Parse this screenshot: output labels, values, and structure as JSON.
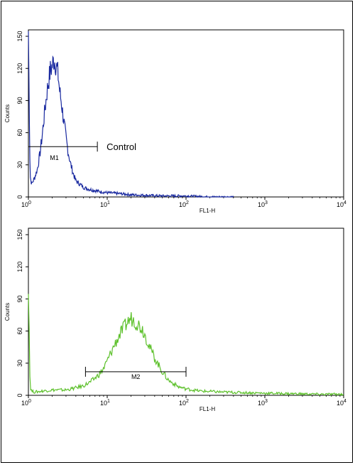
{
  "chart_data": [
    {
      "type": "line",
      "xscale": "log",
      "xlim": [
        1,
        10000
      ],
      "ylim": [
        0,
        156
      ],
      "xlabel": "FL1-H",
      "ylabel": "Counts",
      "yticks": [
        "0",
        "30",
        "60",
        "90",
        "120",
        "150"
      ],
      "xticks": [
        {
          "base": "10",
          "exp": "0"
        },
        {
          "base": "10",
          "exp": "1"
        },
        {
          "base": "10",
          "exp": "2"
        },
        {
          "base": "10",
          "exp": "3"
        },
        {
          "base": "10",
          "exp": "4"
        }
      ],
      "color": "#1a2aa0",
      "series": [
        {
          "x": [
            1.0,
            1.05,
            1.1,
            1.2,
            1.3,
            1.4,
            1.5,
            1.6,
            1.7,
            1.8,
            1.9,
            2.0,
            2.1,
            2.2,
            2.3,
            2.4,
            2.5,
            2.6,
            2.8,
            3.0,
            3.2,
            3.4,
            3.7,
            4.0,
            4.5,
            5.0,
            6.0,
            7.0,
            8.0,
            10.0,
            15.0,
            20.0,
            50.0,
            100.0,
            200.0,
            400.0
          ],
          "values": [
            155,
            20,
            12,
            18,
            26,
            40,
            58,
            78,
            95,
            108,
            118,
            122,
            128,
            126,
            120,
            112,
            98,
            90,
            72,
            55,
            42,
            32,
            22,
            15,
            12,
            9,
            7,
            6,
            5,
            4,
            3,
            2,
            1,
            1,
            0,
            0
          ]
        }
      ],
      "markers": [
        {
          "label": "M1",
          "range": [
            1,
            7.5
          ],
          "y": 47
        }
      ],
      "annotation": "Control"
    },
    {
      "type": "line",
      "xscale": "log",
      "xlim": [
        1,
        10000
      ],
      "ylim": [
        0,
        156
      ],
      "xlabel": "FL1-H",
      "ylabel": "Counts",
      "yticks": [
        "0",
        "30",
        "60",
        "90",
        "120",
        "150"
      ],
      "xticks": [
        {
          "base": "10",
          "exp": "0"
        },
        {
          "base": "10",
          "exp": "1"
        },
        {
          "base": "10",
          "exp": "2"
        },
        {
          "base": "10",
          "exp": "3"
        },
        {
          "base": "10",
          "exp": "4"
        }
      ],
      "color": "#5cc02a",
      "series": [
        {
          "x": [
            1.0,
            1.05,
            1.1,
            1.2,
            1.5,
            2.0,
            3.0,
            4.0,
            5.0,
            6.0,
            7.0,
            8.0,
            9.0,
            10.0,
            12.0,
            14.0,
            16.0,
            18.0,
            20.0,
            22.0,
            25.0,
            28.0,
            32.0,
            36.0,
            40.0,
            50.0,
            60.0,
            80.0,
            100.0,
            150.0,
            300.0,
            1000.0,
            5000.0,
            10000.0
          ],
          "values": [
            105,
            8,
            4,
            3,
            4,
            5,
            5,
            7,
            9,
            12,
            16,
            20,
            25,
            32,
            45,
            55,
            62,
            68,
            72,
            70,
            66,
            62,
            52,
            42,
            35,
            22,
            14,
            8,
            6,
            4,
            3,
            2,
            1,
            1
          ]
        }
      ],
      "markers": [
        {
          "label": "M2",
          "range": [
            5.3,
            100
          ],
          "y": 22
        }
      ]
    }
  ]
}
